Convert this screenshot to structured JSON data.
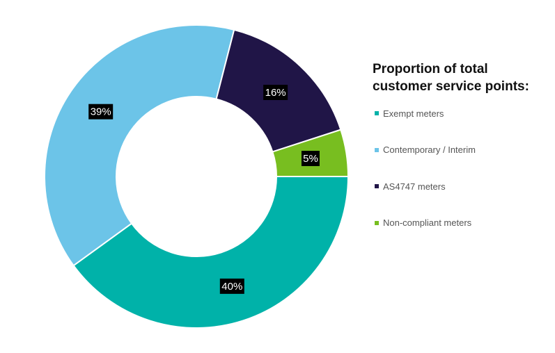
{
  "chart_data": {
    "type": "pie",
    "donut": true,
    "title": "Proportion of total customer service points:",
    "legend_position": "right",
    "categories": [
      "Exempt meters",
      "Contemporary / Interim",
      "AS4747 meters",
      "Non-compliant meters"
    ],
    "values": [
      40,
      39,
      16,
      5
    ],
    "data_labels": [
      "40%",
      "39%",
      "16%",
      "5%"
    ],
    "colors": [
      "#00b2a9",
      "#6cc4e8",
      "#201547",
      "#78be20"
    ]
  }
}
